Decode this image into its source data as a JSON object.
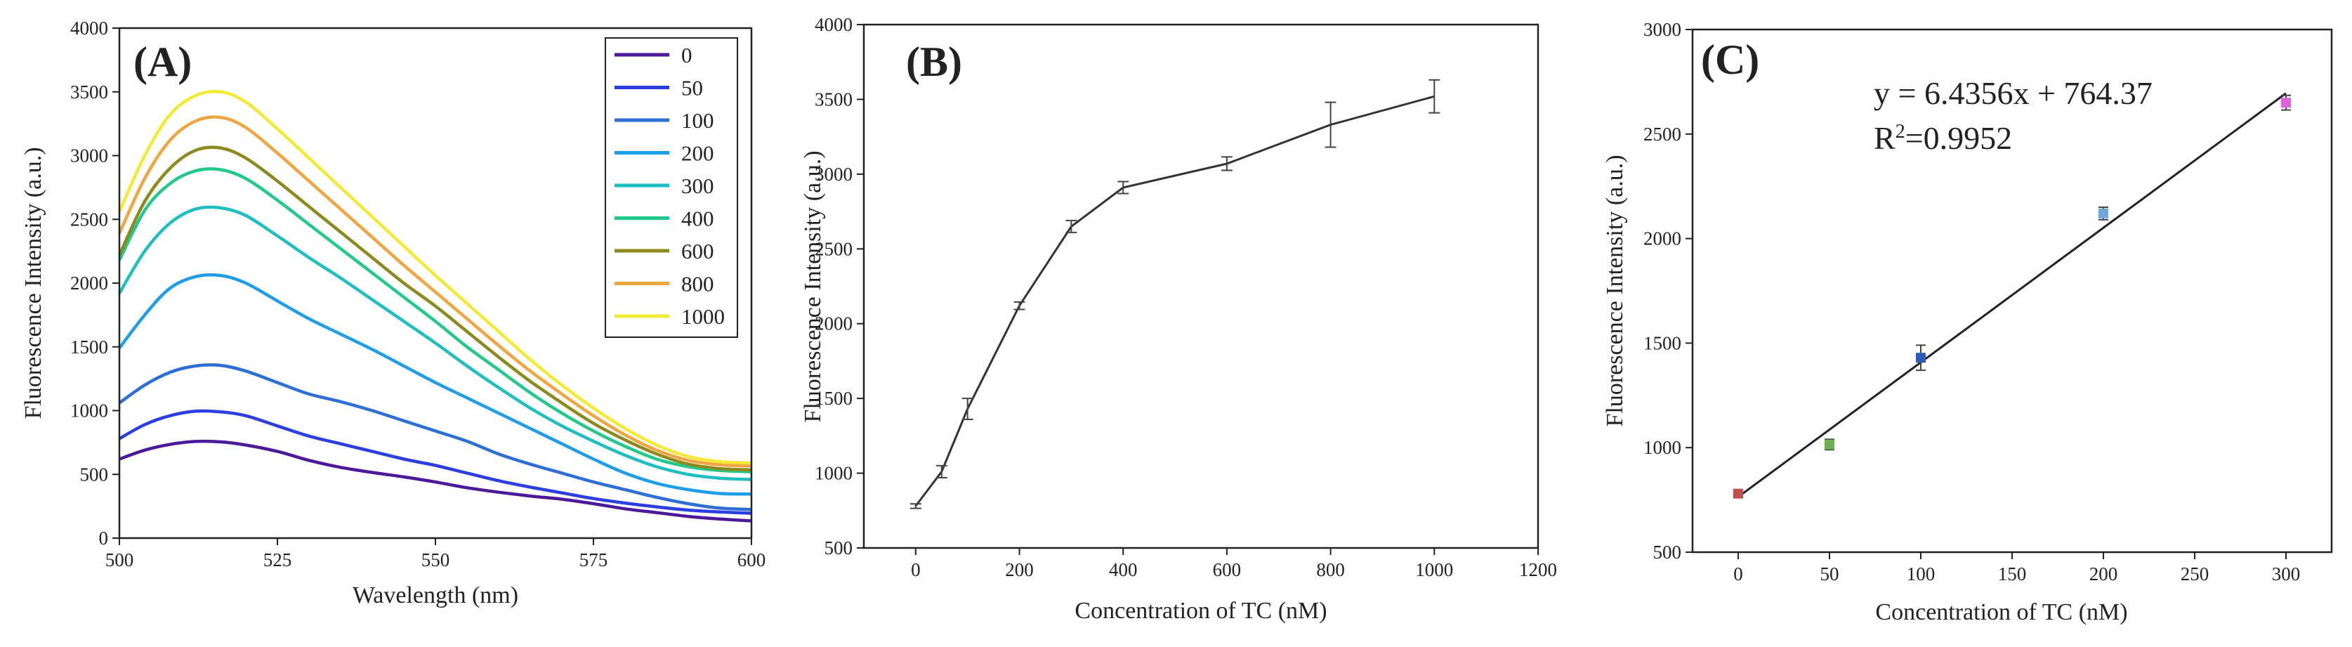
{
  "chart_data": [
    {
      "type": "line",
      "panel_label": "(A)",
      "title": "",
      "xlabel": "Wavelength (nm)",
      "ylabel": "Fluorescence Intensity (a.u.)",
      "xlim": [
        500,
        600
      ],
      "ylim": [
        0,
        4000
      ],
      "xticks": [
        500,
        525,
        550,
        575,
        600
      ],
      "yticks": [
        0,
        500,
        1000,
        1500,
        2000,
        2500,
        3000,
        3500,
        4000
      ],
      "x": [
        500,
        504,
        508,
        512,
        516,
        520,
        525,
        530,
        535,
        540,
        545,
        550,
        555,
        560,
        565,
        570,
        575,
        580,
        585,
        590,
        595,
        600
      ],
      "legend_position": "top-right",
      "series": [
        {
          "name": "0",
          "color": "#4a1a9a",
          "values": [
            620,
            690,
            735,
            758,
            755,
            730,
            680,
            610,
            555,
            515,
            480,
            440,
            395,
            360,
            330,
            305,
            270,
            230,
            200,
            170,
            150,
            135
          ]
        },
        {
          "name": "50",
          "color": "#2b3ee0",
          "values": [
            780,
            890,
            960,
            995,
            990,
            960,
            880,
            800,
            740,
            680,
            620,
            570,
            510,
            450,
            400,
            355,
            310,
            275,
            245,
            220,
            205,
            195
          ]
        },
        {
          "name": "100",
          "color": "#2e6fd6",
          "values": [
            1060,
            1200,
            1300,
            1350,
            1355,
            1310,
            1220,
            1130,
            1070,
            1000,
            920,
            840,
            760,
            660,
            580,
            510,
            440,
            380,
            320,
            270,
            235,
            225
          ]
        },
        {
          "name": "200",
          "color": "#1f9ee8",
          "values": [
            1490,
            1750,
            1960,
            2050,
            2060,
            2000,
            1860,
            1720,
            1600,
            1480,
            1350,
            1220,
            1100,
            980,
            860,
            740,
            620,
            510,
            430,
            380,
            350,
            345
          ]
        },
        {
          "name": "300",
          "color": "#1fbfbf",
          "values": [
            1920,
            2250,
            2470,
            2580,
            2590,
            2530,
            2370,
            2200,
            2040,
            1870,
            1700,
            1530,
            1350,
            1180,
            1020,
            880,
            760,
            650,
            560,
            500,
            470,
            460
          ]
        },
        {
          "name": "400",
          "color": "#22c98a",
          "values": [
            2180,
            2570,
            2780,
            2880,
            2890,
            2820,
            2650,
            2460,
            2270,
            2080,
            1890,
            1700,
            1500,
            1320,
            1140,
            980,
            840,
            720,
            620,
            560,
            530,
            520
          ]
        },
        {
          "name": "600",
          "color": "#8c8a1c",
          "values": [
            2220,
            2640,
            2900,
            3040,
            3060,
            2980,
            2800,
            2600,
            2400,
            2200,
            2000,
            1820,
            1620,
            1420,
            1230,
            1060,
            900,
            770,
            660,
            580,
            545,
            535
          ]
        },
        {
          "name": "800",
          "color": "#f0a640",
          "values": [
            2390,
            2820,
            3120,
            3270,
            3300,
            3220,
            3020,
            2800,
            2580,
            2360,
            2140,
            1930,
            1720,
            1510,
            1310,
            1130,
            960,
            810,
            690,
            610,
            575,
            565
          ]
        },
        {
          "name": "1000",
          "color": "#f2ea33",
          "values": [
            2560,
            3000,
            3320,
            3470,
            3500,
            3420,
            3210,
            2980,
            2750,
            2520,
            2290,
            2060,
            1840,
            1620,
            1400,
            1200,
            1020,
            860,
            730,
            640,
            600,
            590
          ]
        }
      ]
    },
    {
      "type": "line",
      "panel_label": "(B)",
      "title": "",
      "xlabel": "Concentration of TC (nM)",
      "ylabel": "Fluorescence Intensity (a.u.)",
      "xlim": [
        -100,
        1200
      ],
      "ylim": [
        500,
        4000
      ],
      "xticks": [
        0,
        200,
        400,
        600,
        800,
        1000,
        1200
      ],
      "yticks": [
        500,
        1000,
        1500,
        2000,
        2500,
        3000,
        3500,
        4000
      ],
      "color": "#333333",
      "x": [
        0,
        50,
        100,
        200,
        300,
        400,
        600,
        800,
        1000
      ],
      "values": [
        780,
        1010,
        1430,
        2120,
        2650,
        2910,
        3070,
        3330,
        3520
      ],
      "errors": [
        15,
        40,
        70,
        25,
        40,
        40,
        45,
        150,
        110
      ]
    },
    {
      "type": "scatter",
      "panel_label": "(C)",
      "title": "",
      "xlabel": "Concentration of TC (nM)",
      "ylabel": "Fluorescence Intensity (a.u.)",
      "xlim": [
        -25,
        325
      ],
      "ylim": [
        500,
        3000
      ],
      "xticks": [
        0,
        50,
        100,
        150,
        200,
        250,
        300
      ],
      "yticks": [
        500,
        1000,
        1500,
        2000,
        2500,
        3000
      ],
      "x": [
        0,
        50,
        100,
        200,
        300
      ],
      "values": [
        780,
        1015,
        1430,
        2120,
        2650
      ],
      "errors": [
        12,
        25,
        60,
        30,
        35
      ],
      "point_colors": [
        "#c0504d",
        "#70b050",
        "#2a5ab8",
        "#70a8d8",
        "#e060e0"
      ],
      "fit": {
        "slope": 6.4356,
        "intercept": 764.37,
        "x_range": [
          0,
          300
        ],
        "color": "#222222"
      },
      "annotations": {
        "equation": "y = 6.4356x + 764.37",
        "r2_prefix": "R",
        "r2_sup": "2",
        "r2_value": "=0.9952"
      }
    }
  ]
}
